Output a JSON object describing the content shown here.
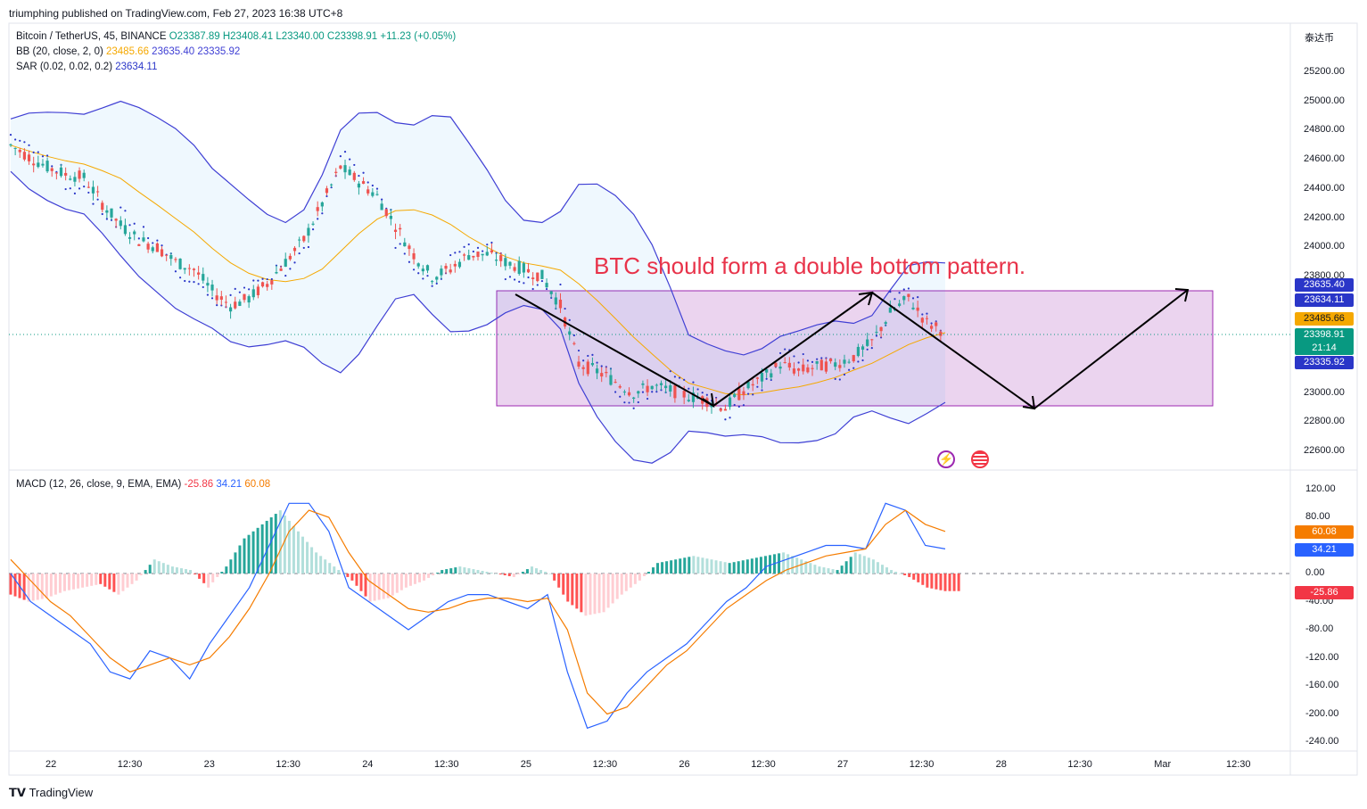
{
  "header": {
    "published": "triumphing published on TradingView.com, Feb 27, 2023 16:38 UTC+8"
  },
  "price_pane": {
    "symbol": "Bitcoin / TetherUS, 45, BINANCE",
    "ohlc": {
      "o": "O23387.89",
      "h": "H23408.41",
      "l": "L23340.00",
      "c": "C23398.91",
      "change": "+11.23 (+0.05%)"
    },
    "bb_label": "BB (20, close, 2, 0)",
    "bb_values": [
      "23485.66",
      "23635.40",
      "23335.92"
    ],
    "sar_label": "SAR (0.02, 0.02, 0.2)",
    "sar_value": "23634.11",
    "currency": "泰达币",
    "annotation": "BTC should form a double bottom pattern.",
    "price_ticks": [
      "25200.00",
      "25000.00",
      "24800.00",
      "24600.00",
      "24400.00",
      "24200.00",
      "24000.00",
      "23800.00",
      "23000.00",
      "22800.00",
      "22600.00"
    ],
    "price_tags": [
      {
        "text": "23635.40",
        "color": "#2a36c8"
      },
      {
        "text": "23634.11",
        "color": "#2a36c8"
      },
      {
        "text": "23485.66",
        "color": "#f5a800"
      },
      {
        "text": "23398.91",
        "text2": "21:14",
        "color": "#089981"
      },
      {
        "text": "23335.92",
        "color": "#2a36c8"
      }
    ]
  },
  "macd_pane": {
    "label": "MACD (12, 26, close, 9, EMA, EMA)",
    "values": [
      "-25.86",
      "34.21",
      "60.08"
    ],
    "ticks": [
      "120.00",
      "80.00",
      "0.00",
      "-40.00",
      "-80.00",
      "-120.00",
      "-160.00",
      "-200.00",
      "-240.00"
    ],
    "tags": [
      {
        "text": "60.08",
        "color": "#f57c00"
      },
      {
        "text": "34.21",
        "color": "#2962ff"
      },
      {
        "text": "-25.86",
        "color": "#f23645"
      }
    ]
  },
  "time_axis": [
    "22",
    "12:30",
    "23",
    "12:30",
    "24",
    "12:30",
    "25",
    "12:30",
    "26",
    "12:30",
    "27",
    "12:30",
    "28",
    "12:30",
    "Mar",
    "12:30"
  ],
  "footer": {
    "brand": "TradingView"
  },
  "colors": {
    "up": "#26a69a",
    "down": "#ef5350",
    "bb_band": "#3f3fd4",
    "bb_basis": "#f5a800",
    "rect": "#9c27b0",
    "annotation": "#e8334a",
    "macd": "#2962ff",
    "signal": "#f57c00"
  },
  "chart_data": [
    {
      "type": "candlestick",
      "title": "",
      "x_range": [
        "22",
        "Mar 12:30"
      ],
      "y_range": [
        22500,
        25400
      ],
      "close_series_approx": [
        24700,
        24620,
        24550,
        24500,
        24480,
        24300,
        24150,
        24050,
        24000,
        23900,
        23850,
        23700,
        23600,
        23650,
        23750,
        23900,
        24050,
        24300,
        24550,
        24450,
        24350,
        24150,
        23950,
        23800,
        23850,
        23950,
        23950,
        23900,
        23850,
        23800,
        23600,
        23200,
        23150,
        23080,
        23000,
        23050,
        23020,
        22980,
        22950,
        22900,
        23020,
        23100,
        23200,
        23150,
        23180,
        23200,
        23250,
        23350,
        23550,
        23650,
        23480,
        23420
      ],
      "current_price": 23398.91,
      "bollinger": {
        "basis": 23485.66,
        "upper": 23635.4,
        "lower": 23335.92
      },
      "sar": 23634.11,
      "range_box": {
        "top": 23710,
        "bottom": 22910
      },
      "annotation": "BTC should form a double bottom pattern."
    },
    {
      "type": "bar+line",
      "title": "",
      "y_range": [
        -250,
        130
      ],
      "histogram_approx": [
        -30,
        -40,
        -35,
        -25,
        -20,
        -15,
        -30,
        -10,
        20,
        10,
        5,
        -20,
        10,
        50,
        70,
        90,
        60,
        30,
        10,
        -10,
        -40,
        -35,
        -20,
        -10,
        5,
        10,
        5,
        0,
        -5,
        10,
        0,
        -40,
        -60,
        -55,
        -30,
        -10,
        15,
        20,
        25,
        20,
        15,
        20,
        25,
        30,
        20,
        10,
        5,
        30,
        20,
        5,
        -5,
        -20,
        -25
      ],
      "macd_approx": [
        0,
        -40,
        -60,
        -80,
        -100,
        -140,
        -150,
        -110,
        -120,
        -150,
        -100,
        -60,
        -20,
        40,
        100,
        100,
        60,
        -20,
        -40,
        -60,
        -80,
        -60,
        -40,
        -30,
        -30,
        -40,
        -50,
        -30,
        -140,
        -220,
        -210,
        -170,
        -140,
        -120,
        -100,
        -70,
        -40,
        -20,
        10,
        20,
        30,
        40,
        40,
        35,
        100,
        90,
        40,
        35
      ],
      "signal_approx": [
        20,
        -10,
        -40,
        -60,
        -90,
        -120,
        -140,
        -130,
        -120,
        -130,
        -120,
        -90,
        -50,
        0,
        60,
        90,
        80,
        30,
        -10,
        -30,
        -50,
        -55,
        -50,
        -40,
        -35,
        -35,
        -40,
        -35,
        -80,
        -170,
        -200,
        -190,
        -160,
        -130,
        -110,
        -80,
        -50,
        -30,
        -10,
        5,
        15,
        25,
        30,
        35,
        70,
        90,
        70,
        60
      ],
      "values": {
        "histogram": -25.86,
        "macd": 34.21,
        "signal": 60.08
      }
    }
  ]
}
